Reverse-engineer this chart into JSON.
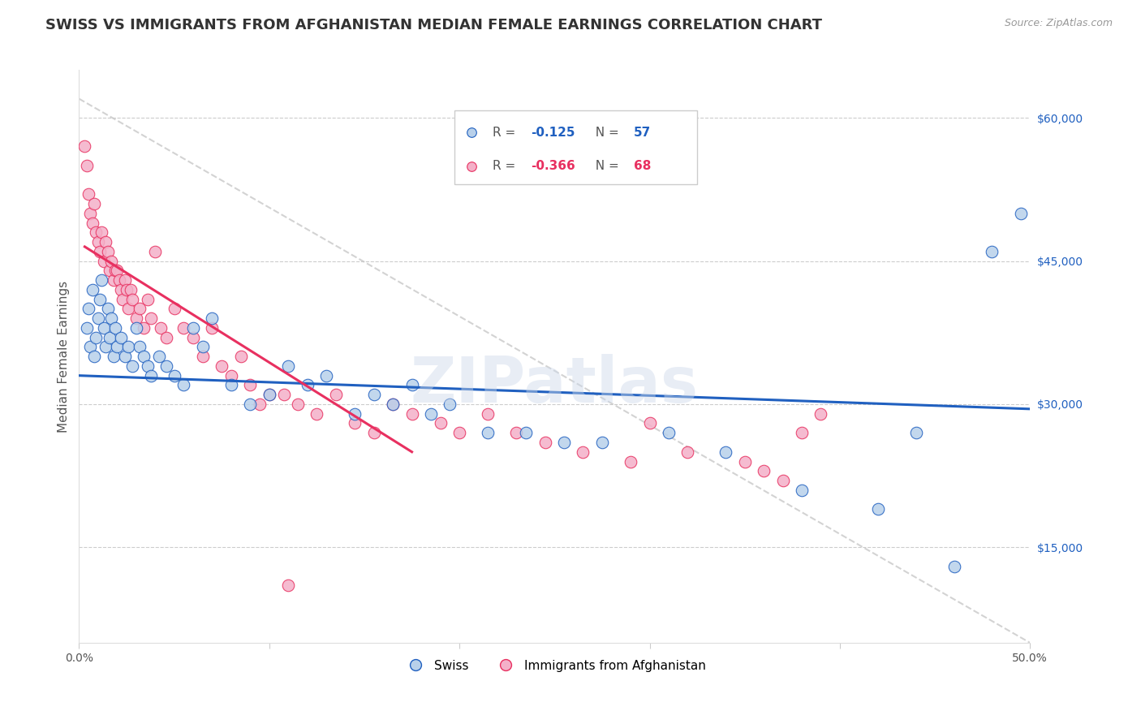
{
  "title": "SWISS VS IMMIGRANTS FROM AFGHANISTAN MEDIAN FEMALE EARNINGS CORRELATION CHART",
  "source": "Source: ZipAtlas.com",
  "ylabel": "Median Female Earnings",
  "xlim": [
    0,
    0.5
  ],
  "ylim": [
    5000,
    65000
  ],
  "yticks": [
    15000,
    30000,
    45000,
    60000
  ],
  "ytick_labels": [
    "$15,000",
    "$30,000",
    "$45,000",
    "$60,000"
  ],
  "xticks": [
    0.0,
    0.1,
    0.2,
    0.3,
    0.4,
    0.5
  ],
  "xtick_labels": [
    "0.0%",
    "",
    "",
    "",
    "",
    "50.0%"
  ],
  "blue_R": -0.125,
  "blue_N": 57,
  "pink_R": -0.366,
  "pink_N": 68,
  "blue_color": "#b8d0ea",
  "pink_color": "#f4b0c8",
  "blue_line_color": "#2060c0",
  "pink_line_color": "#e83060",
  "blue_scatter_x": [
    0.004,
    0.005,
    0.006,
    0.007,
    0.008,
    0.009,
    0.01,
    0.011,
    0.012,
    0.013,
    0.014,
    0.015,
    0.016,
    0.017,
    0.018,
    0.019,
    0.02,
    0.022,
    0.024,
    0.026,
    0.028,
    0.03,
    0.032,
    0.034,
    0.036,
    0.038,
    0.042,
    0.046,
    0.05,
    0.055,
    0.06,
    0.065,
    0.07,
    0.08,
    0.09,
    0.1,
    0.11,
    0.12,
    0.13,
    0.145,
    0.155,
    0.165,
    0.175,
    0.185,
    0.195,
    0.215,
    0.235,
    0.255,
    0.275,
    0.31,
    0.34,
    0.38,
    0.42,
    0.44,
    0.46,
    0.48,
    0.495
  ],
  "blue_scatter_y": [
    38000,
    40000,
    36000,
    42000,
    35000,
    37000,
    39000,
    41000,
    43000,
    38000,
    36000,
    40000,
    37000,
    39000,
    35000,
    38000,
    36000,
    37000,
    35000,
    36000,
    34000,
    38000,
    36000,
    35000,
    34000,
    33000,
    35000,
    34000,
    33000,
    32000,
    38000,
    36000,
    39000,
    32000,
    30000,
    31000,
    34000,
    32000,
    33000,
    29000,
    31000,
    30000,
    32000,
    29000,
    30000,
    27000,
    27000,
    26000,
    26000,
    27000,
    25000,
    21000,
    19000,
    27000,
    13000,
    46000,
    50000
  ],
  "pink_scatter_x": [
    0.003,
    0.004,
    0.005,
    0.006,
    0.007,
    0.008,
    0.009,
    0.01,
    0.011,
    0.012,
    0.013,
    0.014,
    0.015,
    0.016,
    0.017,
    0.018,
    0.019,
    0.02,
    0.021,
    0.022,
    0.023,
    0.024,
    0.025,
    0.026,
    0.027,
    0.028,
    0.03,
    0.032,
    0.034,
    0.036,
    0.038,
    0.04,
    0.043,
    0.046,
    0.05,
    0.055,
    0.06,
    0.065,
    0.07,
    0.075,
    0.08,
    0.085,
    0.09,
    0.095,
    0.1,
    0.108,
    0.115,
    0.125,
    0.135,
    0.145,
    0.155,
    0.165,
    0.175,
    0.19,
    0.2,
    0.215,
    0.23,
    0.245,
    0.265,
    0.29,
    0.3,
    0.32,
    0.35,
    0.36,
    0.37,
    0.38,
    0.39,
    0.11
  ],
  "pink_scatter_y": [
    57000,
    55000,
    52000,
    50000,
    49000,
    51000,
    48000,
    47000,
    46000,
    48000,
    45000,
    47000,
    46000,
    44000,
    45000,
    43000,
    44000,
    44000,
    43000,
    42000,
    41000,
    43000,
    42000,
    40000,
    42000,
    41000,
    39000,
    40000,
    38000,
    41000,
    39000,
    46000,
    38000,
    37000,
    40000,
    38000,
    37000,
    35000,
    38000,
    34000,
    33000,
    35000,
    32000,
    30000,
    31000,
    31000,
    30000,
    29000,
    31000,
    28000,
    27000,
    30000,
    29000,
    28000,
    27000,
    29000,
    27000,
    26000,
    25000,
    24000,
    28000,
    25000,
    24000,
    23000,
    22000,
    27000,
    29000,
    11000
  ],
  "blue_trend_x": [
    0.0,
    0.5
  ],
  "blue_trend_y": [
    33000,
    29500
  ],
  "pink_trend_x": [
    0.003,
    0.175
  ],
  "pink_trend_y": [
    46500,
    25000
  ],
  "ref_line_x": [
    0.0,
    0.5
  ],
  "ref_line_y": [
    62000,
    5000
  ],
  "watermark": "ZIPatlas",
  "title_fontsize": 13,
  "axis_label_fontsize": 11,
  "tick_fontsize": 10,
  "legend_fontsize": 11,
  "source_fontsize": 9
}
